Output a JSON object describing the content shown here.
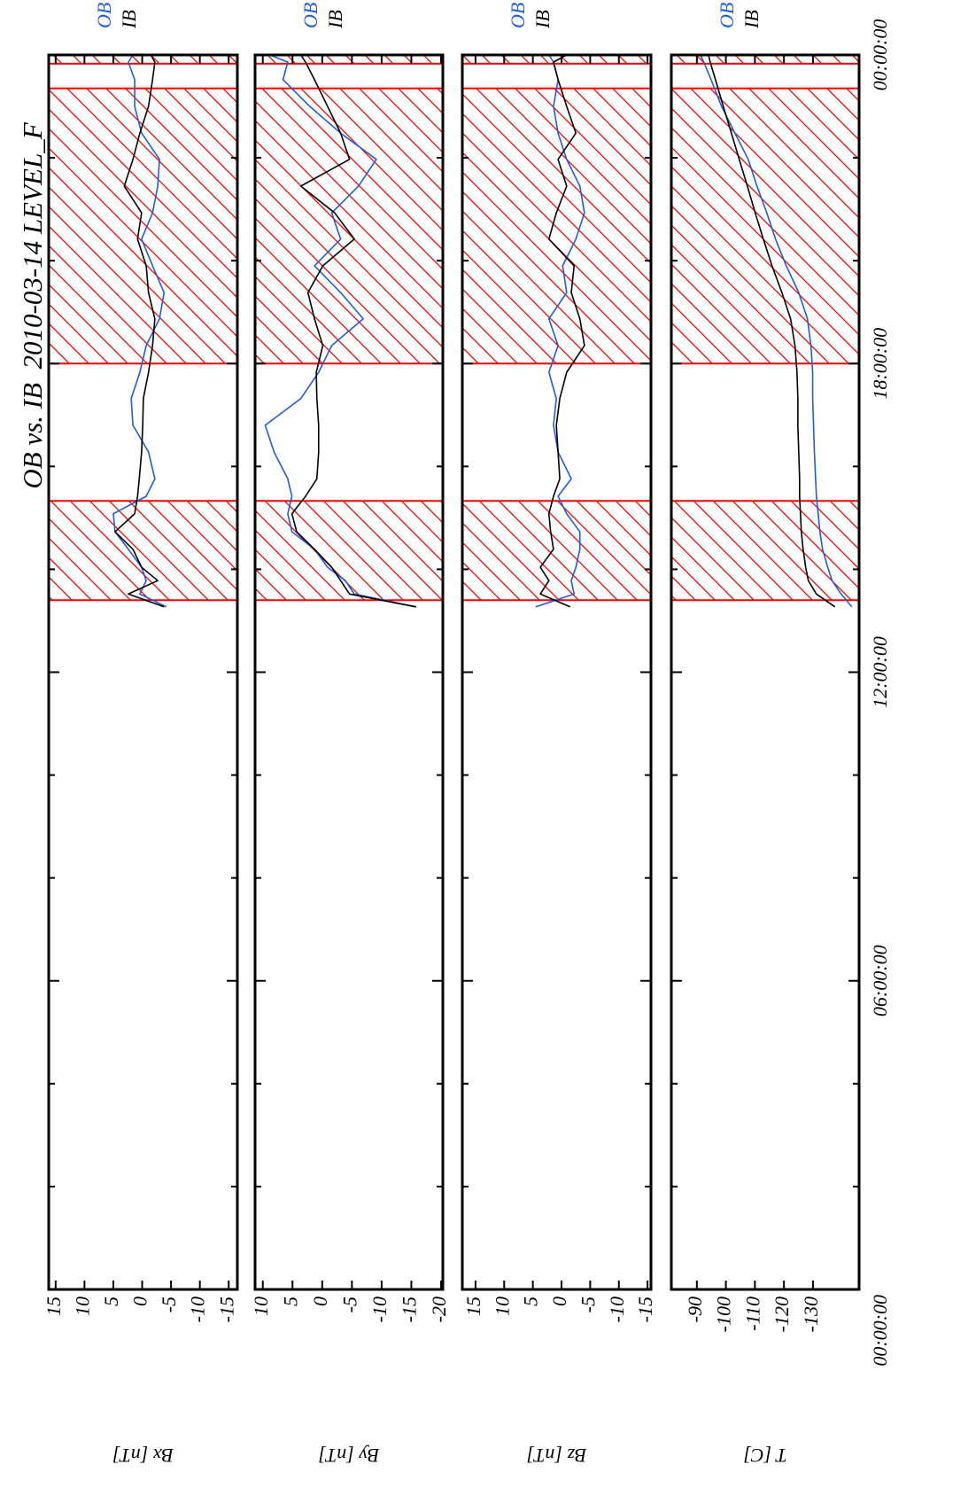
{
  "chart_data": [
    {
      "type": "line",
      "title": "OB vs. IB  2010-03-14 LEVEL_F",
      "ylabel": "Bx [nT]",
      "xlim": [
        0,
        24
      ],
      "ylim": [
        -16.5,
        16.2
      ],
      "yticks": [
        15,
        10,
        5,
        0,
        -5,
        -10,
        -15
      ],
      "shaded_regions": [
        [
          13.4,
          15.33
        ],
        [
          18.0,
          23.35
        ],
        [
          23.83,
          24
        ]
      ],
      "shade_color": "#ff0000",
      "x": [
        13.27,
        13.52,
        13.78,
        14.04,
        14.39,
        14.73,
        15.08,
        15.42,
        15.76,
        16.28,
        16.8,
        17.32,
        17.83,
        18.35,
        18.87,
        19.38,
        19.9,
        20.42,
        20.93,
        21.45,
        21.97,
        22.48,
        23.0,
        23.52,
        23.86,
        24.0
      ],
      "series": [
        {
          "name": "OB",
          "color": "#1f5be0",
          "values": [
            -4.2,
            0.4,
            -0.7,
            0.1,
            2.4,
            4.7,
            5.0,
            -0.7,
            -2.2,
            -1.1,
            1.6,
            1.9,
            0.4,
            -0.7,
            -3.0,
            -3.8,
            -1.8,
            0.1,
            -1.8,
            -2.7,
            -3.0,
            0.1,
            1.3,
            1.3,
            2.4,
            1.6
          ]
        },
        {
          "name": "IB",
          "color": "#000000",
          "values": [
            -3.8,
            2.4,
            -2.7,
            0.1,
            1.6,
            4.7,
            1.3,
            0.8,
            0.5,
            0.1,
            -0.1,
            -0.2,
            -1.1,
            -1.8,
            -2.2,
            -1.1,
            -0.7,
            0.8,
            0.1,
            3.1,
            1.6,
            0.4,
            -1.1,
            -1.8,
            -2.2,
            -1.5
          ]
        }
      ]
    },
    {
      "type": "line",
      "ylabel": "By [nT]",
      "xlim": [
        0,
        24
      ],
      "ylim": [
        -20.3,
        11.3
      ],
      "yticks": [
        10,
        5,
        0,
        -5,
        -10,
        -15,
        -20
      ],
      "shaded_regions": [
        [
          13.4,
          15.33
        ],
        [
          18.0,
          23.35
        ],
        [
          23.83,
          24
        ]
      ],
      "shade_color": "#ff0000",
      "x": [
        13.27,
        13.52,
        13.78,
        14.04,
        14.39,
        14.73,
        15.08,
        15.42,
        15.76,
        16.28,
        16.8,
        17.32,
        17.83,
        18.35,
        18.87,
        19.38,
        19.9,
        20.42,
        20.93,
        21.45,
        21.97,
        22.48,
        23.0,
        23.52,
        23.86,
        24.0
      ],
      "series": [
        {
          "name": "OB",
          "color": "#1f5be0",
          "values": [
            -15.8,
            -5.4,
            -3.9,
            -0.9,
            1.3,
            5.1,
            5.8,
            5.1,
            5.8,
            8.1,
            9.6,
            3.6,
            0.6,
            -1.6,
            -6.9,
            -3.1,
            1.3,
            -3.1,
            -1.6,
            -6.1,
            -9.1,
            -3.1,
            2.1,
            6.6,
            5.8,
            8.8
          ]
        },
        {
          "name": "IB",
          "color": "#000000",
          "values": [
            -15.8,
            -4.6,
            -3.1,
            -1.6,
            1.3,
            4.3,
            5.1,
            2.8,
            0.9,
            0.6,
            0.6,
            0.9,
            1.0,
            -0.1,
            1.3,
            2.4,
            -0.1,
            -5.4,
            -2.1,
            3.6,
            -4.6,
            -3.1,
            -0.9,
            1.3,
            2.8,
            3.6
          ]
        }
      ]
    },
    {
      "type": "line",
      "ylabel": "Bz [nT]",
      "xlim": [
        0,
        24
      ],
      "ylim": [
        -15.6,
        17.3
      ],
      "yticks": [
        15,
        10,
        5,
        0,
        -5,
        -10,
        -15
      ],
      "shaded_regions": [
        [
          13.4,
          15.33
        ],
        [
          18.0,
          23.35
        ],
        [
          23.83,
          24
        ]
      ],
      "shade_color": "#ff0000",
      "x": [
        13.27,
        13.52,
        13.78,
        14.04,
        14.39,
        14.73,
        15.08,
        15.42,
        15.76,
        16.28,
        16.8,
        17.32,
        17.83,
        18.35,
        18.87,
        19.38,
        19.9,
        20.42,
        20.93,
        21.45,
        21.97,
        22.48,
        23.0,
        23.52,
        23.86,
        24.0
      ],
      "series": [
        {
          "name": "OB",
          "color": "#1f5be0",
          "values": [
            4.5,
            -2.2,
            -1.7,
            -2.5,
            -3.2,
            -3.2,
            -0.9,
            0.6,
            -1.7,
            0.6,
            1.4,
            0.9,
            2.2,
            0.6,
            2.2,
            -0.9,
            -0.2,
            -2.5,
            -4.0,
            -3.2,
            -0.9,
            0.6,
            1.4,
            0.6,
            1.4,
            2.2
          ]
        },
        {
          "name": "IB",
          "color": "#000000",
          "values": [
            -1.5,
            3.7,
            2.2,
            3.7,
            1.4,
            1.9,
            2.2,
            1.4,
            0.3,
            0.6,
            0.9,
            0.3,
            -0.9,
            -4.0,
            -3.2,
            -1.7,
            -2.2,
            2.2,
            0.9,
            -0.9,
            0.6,
            -2.5,
            -0.9,
            0.6,
            1.4,
            -0.9
          ]
        }
      ]
    },
    {
      "type": "line",
      "ylabel": "T [C]",
      "xlim": [
        0,
        24
      ],
      "ylim": [
        -145.9,
        -81.2
      ],
      "yticks": [
        -90,
        -100,
        -110,
        -120,
        -130
      ],
      "xticks": [
        {
          "value": 0,
          "label": "00:00:00"
        },
        {
          "value": 6,
          "label": "06:00:00"
        },
        {
          "value": 12,
          "label": "12:00:00"
        },
        {
          "value": 18,
          "label": "18:00:00"
        },
        {
          "value": 24,
          "label": "00:00:00"
        }
      ],
      "minor_xticks": [
        2,
        4,
        8,
        10,
        14,
        16,
        20,
        22
      ],
      "shaded_regions": [
        [
          13.4,
          15.33
        ],
        [
          18.0,
          23.35
        ],
        [
          23.83,
          24
        ]
      ],
      "shade_color": "#ff0000",
      "x": [
        13.27,
        13.52,
        13.78,
        14.04,
        14.39,
        14.73,
        15.08,
        15.42,
        15.76,
        16.28,
        16.8,
        17.32,
        17.83,
        18.35,
        18.87,
        19.38,
        19.9,
        20.42,
        20.93,
        21.45,
        21.97,
        22.48,
        23.0,
        23.52,
        23.86,
        24.0
      ],
      "series": [
        {
          "name": "OB",
          "color": "#1f5be0",
          "values": [
            -143.4,
            -139.7,
            -136.6,
            -135.1,
            -133.3,
            -132.4,
            -131.8,
            -131.2,
            -130.9,
            -130.5,
            -130.2,
            -129.9,
            -129.9,
            -129.3,
            -128.1,
            -125.1,
            -120.8,
            -117.1,
            -114.1,
            -110.7,
            -107.7,
            -103.1,
            -98.5,
            -94.9,
            -92.4,
            -91.2
          ]
        },
        {
          "name": "IB",
          "color": "#000000",
          "values": [
            -137.6,
            -131.2,
            -128.4,
            -127.5,
            -126.6,
            -126.0,
            -125.7,
            -125.4,
            -125.4,
            -125.1,
            -124.8,
            -124.8,
            -124.5,
            -123.8,
            -122.3,
            -119.3,
            -115.9,
            -112.9,
            -110.1,
            -107.4,
            -104.6,
            -101.9,
            -99.1,
            -96.4,
            -94.6,
            -94.0
          ]
        }
      ]
    }
  ]
}
